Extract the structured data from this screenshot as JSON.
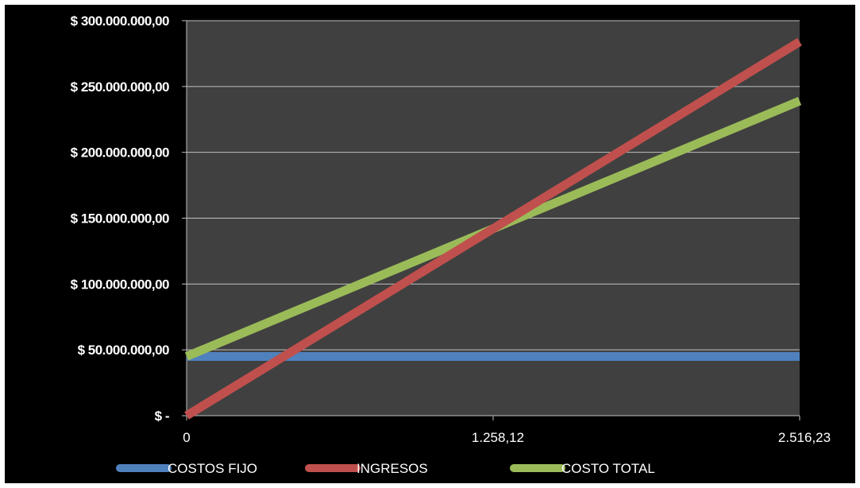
{
  "chart_data": {
    "type": "line",
    "x": [
      0,
      1258.12,
      2516.23
    ],
    "x_tick_labels": [
      "0",
      "1.258,12",
      "2.516,23"
    ],
    "y_tick_labels": [
      "$ -",
      "$ 50.000.000,00",
      "$ 100.000.000,00",
      "$ 150.000.000,00",
      "$ 200.000.000,00",
      "$ 250.000.000,00",
      "$ 300.000.000,00"
    ],
    "y_ticks": [
      0,
      50000000,
      100000000,
      150000000,
      200000000,
      250000000,
      300000000
    ],
    "ylim": [
      0,
      300000000
    ],
    "xlim": [
      0,
      2516.23
    ],
    "grid": true,
    "legend_position": "bottom",
    "series": [
      {
        "name": "COSTOS FIJO",
        "color": "#4f81bd",
        "values": [
          45000000,
          45000000,
          45000000
        ]
      },
      {
        "name": "INGRESOS",
        "color": "#c0504d",
        "values": [
          0,
          142000000,
          284000000
        ]
      },
      {
        "name": "COSTO TOTAL",
        "color": "#9bbb59",
        "values": [
          45000000,
          142000000,
          239000000
        ]
      }
    ],
    "colors": {
      "plot_background": "#404040",
      "chart_background": "#000000",
      "gridline": "#bfbfbf"
    }
  }
}
